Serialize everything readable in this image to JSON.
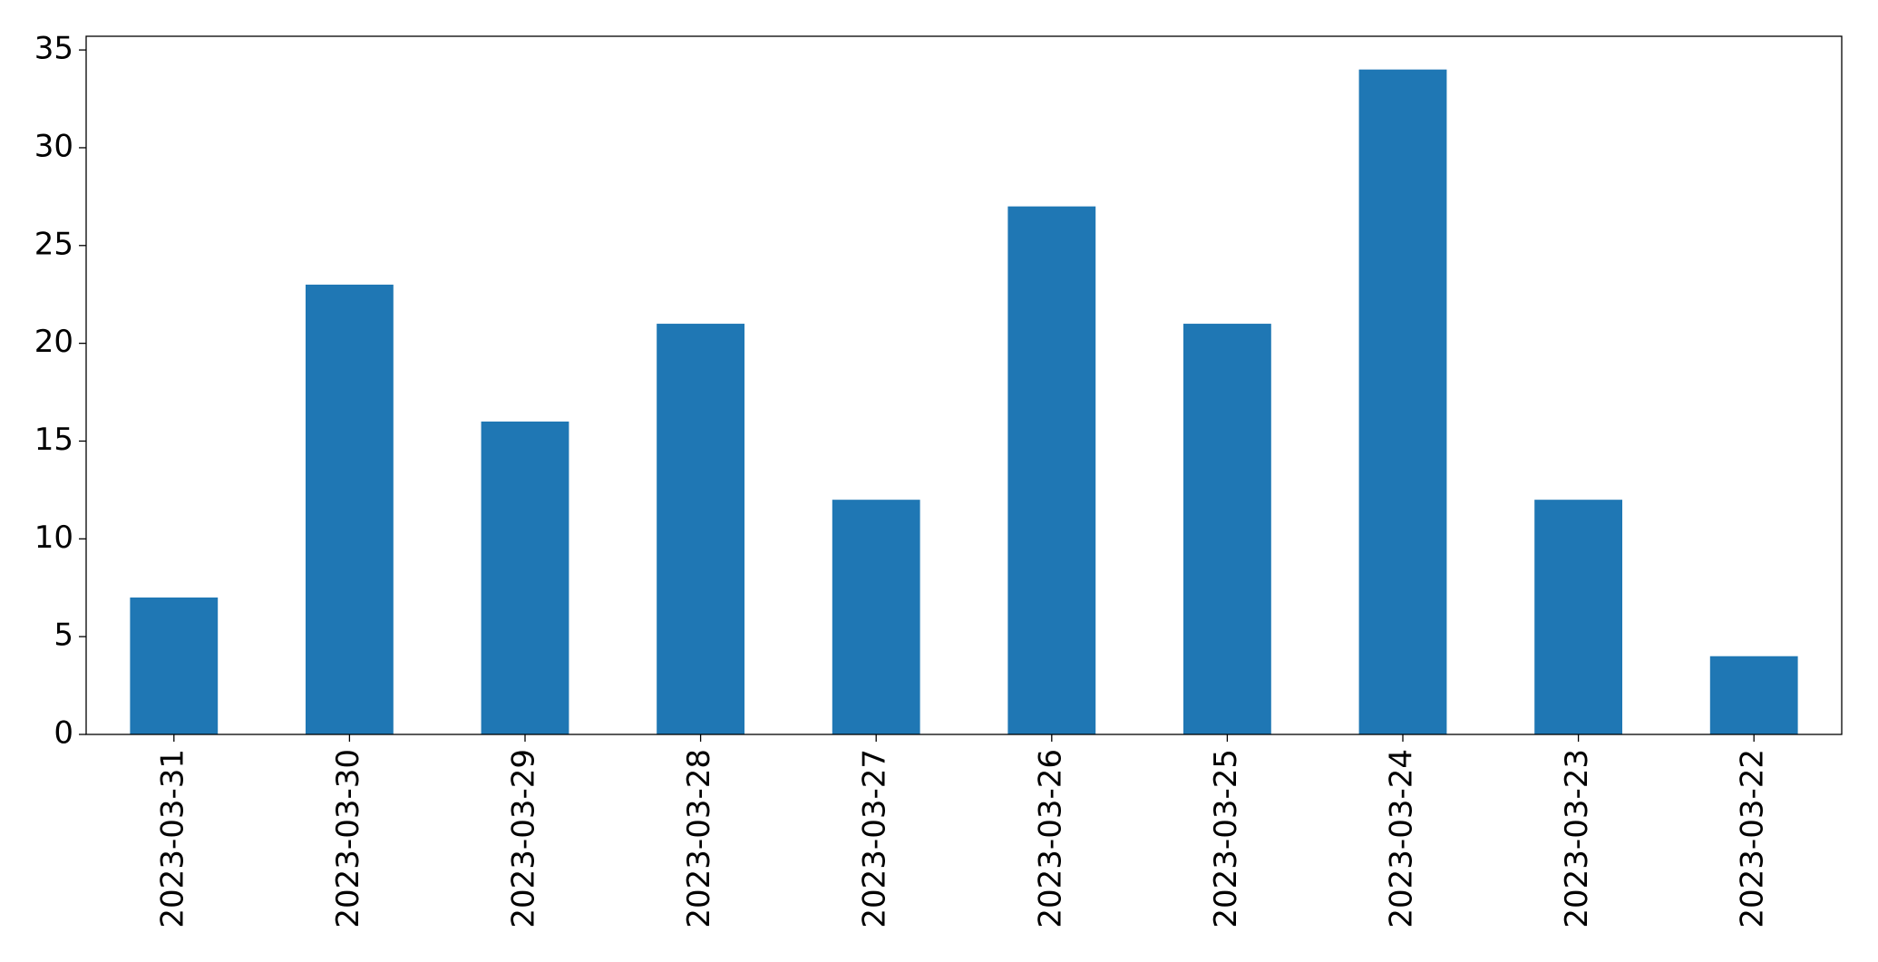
{
  "chart_data": {
    "type": "bar",
    "categories": [
      "2023-03-31",
      "2023-03-30",
      "2023-03-29",
      "2023-03-28",
      "2023-03-27",
      "2023-03-26",
      "2023-03-25",
      "2023-03-24",
      "2023-03-23",
      "2023-03-22"
    ],
    "values": [
      7,
      23,
      16,
      21,
      12,
      27,
      21,
      34,
      12,
      4
    ],
    "color": "#1f77b4",
    "ylim": [
      0,
      35.7
    ],
    "yticks": [
      0,
      5,
      10,
      15,
      20,
      25,
      30,
      35
    ],
    "grid": false
  }
}
